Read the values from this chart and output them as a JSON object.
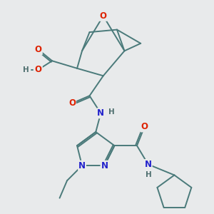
{
  "background_color": "#e8eaeb",
  "bond_color": "#4a7a7a",
  "atom_colors": {
    "O": "#dd2200",
    "N": "#2222cc",
    "C": "#4a7a7a",
    "H": "#507070"
  }
}
